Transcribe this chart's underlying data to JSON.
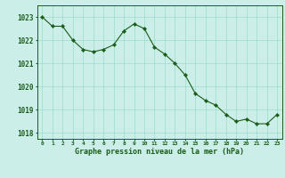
{
  "x": [
    0,
    1,
    2,
    3,
    4,
    5,
    6,
    7,
    8,
    9,
    10,
    11,
    12,
    13,
    14,
    15,
    16,
    17,
    18,
    19,
    20,
    21,
    22,
    23
  ],
  "y": [
    1023.0,
    1022.6,
    1022.6,
    1022.0,
    1021.6,
    1021.5,
    1021.6,
    1021.8,
    1022.4,
    1022.7,
    1022.5,
    1021.7,
    1021.4,
    1021.0,
    1020.5,
    1019.7,
    1019.4,
    1019.2,
    1018.8,
    1018.5,
    1018.6,
    1018.4,
    1018.4,
    1018.8
  ],
  "line_color": "#1a5c1a",
  "marker_color": "#1a5c1a",
  "bg_color": "#cceee8",
  "grid_color": "#99ddcc",
  "xlabel": "Graphe pression niveau de la mer (hPa)",
  "xlabel_color": "#1a5c1a",
  "tick_color": "#1a5c1a",
  "ylim_min": 1017.75,
  "ylim_max": 1023.5,
  "yticks": [
    1018,
    1019,
    1020,
    1021,
    1022,
    1023
  ],
  "xtick_labels": [
    "0",
    "1",
    "2",
    "3",
    "4",
    "5",
    "6",
    "7",
    "8",
    "9",
    "10",
    "11",
    "12",
    "13",
    "14",
    "15",
    "16",
    "17",
    "18",
    "19",
    "20",
    "21",
    "22",
    "23"
  ]
}
